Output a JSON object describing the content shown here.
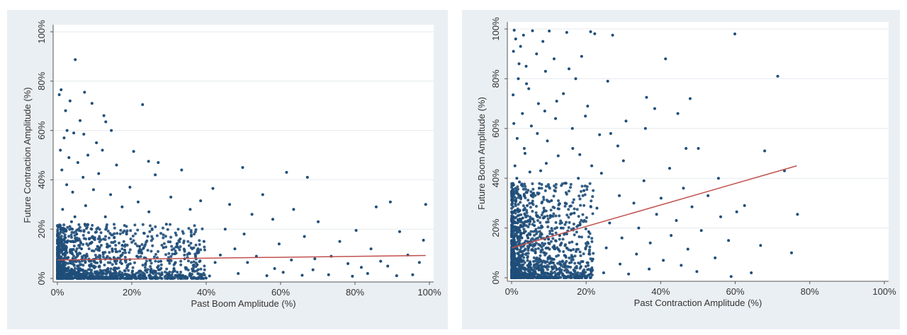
{
  "colors": {
    "panel_bg": "#eaeff3",
    "plot_bg": "#ffffff",
    "grid": "#e6eaee",
    "point": "#1f4e79",
    "fit_line": "#c0504d"
  },
  "chart_data": [
    {
      "type": "scatter",
      "title": "",
      "xlabel": "Past Boom Amplitude (%)",
      "ylabel": "Future Contraction Amplitude (%)",
      "xlim": [
        0,
        100
      ],
      "ylim": [
        0,
        100
      ],
      "x_ticks": [
        "0%",
        "20%",
        "40%",
        "60%",
        "80%",
        "100%"
      ],
      "y_ticks": [
        "0%",
        "20%",
        "40%",
        "60%",
        "80%",
        "100%"
      ],
      "grid": "horizontal",
      "fit_line": {
        "x": [
          0,
          99
        ],
        "y": [
          7.5,
          9.3
        ]
      },
      "points": [
        [
          4.8,
          88.7
        ],
        [
          1,
          76.5
        ],
        [
          7.3,
          75.5
        ],
        [
          0.5,
          74.5
        ],
        [
          22.9,
          70.5
        ],
        [
          9.3,
          71
        ],
        [
          2.2,
          68
        ],
        [
          12.5,
          66
        ],
        [
          3.4,
          72
        ],
        [
          13,
          63.5
        ],
        [
          6.1,
          64
        ],
        [
          2.6,
          60
        ],
        [
          14.5,
          60
        ],
        [
          1.8,
          57
        ],
        [
          4.4,
          59
        ],
        [
          7.1,
          58.5
        ],
        [
          10.5,
          55
        ],
        [
          12.1,
          52
        ],
        [
          0.8,
          52
        ],
        [
          20.5,
          51.5
        ],
        [
          3.1,
          49
        ],
        [
          5.5,
          47
        ],
        [
          8.2,
          50
        ],
        [
          15.9,
          46
        ],
        [
          24.5,
          47.5
        ],
        [
          27.1,
          47
        ],
        [
          49.8,
          45
        ],
        [
          1.2,
          44
        ],
        [
          11.1,
          42.5
        ],
        [
          6.9,
          41
        ],
        [
          33.4,
          44
        ],
        [
          61.6,
          43
        ],
        [
          67.2,
          41
        ],
        [
          26.3,
          42
        ],
        [
          2.5,
          38
        ],
        [
          19.5,
          37
        ],
        [
          9.7,
          36
        ],
        [
          14.3,
          34
        ],
        [
          41.8,
          36.5
        ],
        [
          4.1,
          35
        ],
        [
          30.5,
          33
        ],
        [
          55.2,
          34
        ],
        [
          38.5,
          31.5
        ],
        [
          21.7,
          31
        ],
        [
          46.3,
          30
        ],
        [
          89.5,
          31
        ],
        [
          85.7,
          29
        ],
        [
          99,
          30
        ],
        [
          17.4,
          29
        ],
        [
          7.6,
          29.5
        ],
        [
          63.5,
          28
        ],
        [
          35.7,
          28
        ],
        [
          52.3,
          26
        ],
        [
          24.6,
          27
        ],
        [
          12.9,
          25
        ],
        [
          57.9,
          24
        ],
        [
          70.1,
          23
        ],
        [
          29.3,
          22
        ],
        [
          3.8,
          23
        ],
        [
          45.1,
          20
        ],
        [
          80.3,
          19.5
        ],
        [
          92,
          19
        ],
        [
          50.2,
          18
        ],
        [
          18.6,
          18
        ],
        [
          66.4,
          17
        ],
        [
          9.2,
          20
        ],
        [
          33,
          16
        ],
        [
          39.4,
          15
        ],
        [
          75.9,
          15
        ],
        [
          98.4,
          15.5
        ],
        [
          59.6,
          14
        ],
        [
          22.1,
          13
        ],
        [
          47.7,
          12
        ],
        [
          6.5,
          12
        ],
        [
          84.3,
          12
        ],
        [
          14.8,
          11
        ],
        [
          31.6,
          10
        ],
        [
          94.2,
          9.5
        ],
        [
          53.5,
          9
        ],
        [
          69.2,
          8
        ],
        [
          27.8,
          7
        ],
        [
          42.4,
          6.5
        ],
        [
          78.1,
          6
        ],
        [
          88.8,
          5
        ],
        [
          4,
          10
        ],
        [
          11.5,
          8
        ],
        [
          17.3,
          6
        ],
        [
          1.6,
          7
        ],
        [
          2.3,
          4
        ],
        [
          5.7,
          3
        ],
        [
          8.9,
          5
        ],
        [
          13.6,
          4
        ],
        [
          20.2,
          3
        ],
        [
          25.5,
          2.5
        ],
        [
          36.4,
          3
        ],
        [
          48.6,
          2
        ],
        [
          60.7,
          2.5
        ],
        [
          72.9,
          1.5
        ],
        [
          83.4,
          2
        ],
        [
          95.5,
          1.5
        ],
        [
          3.2,
          1
        ],
        [
          7.8,
          1.5
        ],
        [
          10.3,
          2
        ],
        [
          16.1,
          1
        ],
        [
          19.4,
          1.2
        ],
        [
          30.1,
          1.4
        ],
        [
          40.9,
          1
        ],
        [
          56.3,
          1.1
        ],
        [
          65.8,
          1.3
        ],
        [
          79.3,
          0.9
        ],
        [
          91.2,
          1.1
        ],
        [
          2.7,
          0.8
        ],
        [
          1.1,
          2.2
        ],
        [
          0.6,
          5.5
        ],
        [
          2.9,
          8.5
        ],
        [
          1.9,
          12
        ],
        [
          0.7,
          16
        ],
        [
          3.5,
          15
        ],
        [
          5.2,
          18
        ],
        [
          6.3,
          14.5
        ],
        [
          0.9,
          20
        ],
        [
          4.7,
          25
        ],
        [
          1.4,
          28
        ],
        [
          7.4,
          22
        ],
        [
          8.6,
          16
        ],
        [
          10.8,
          13
        ],
        [
          12.3,
          10.5
        ],
        [
          15.2,
          8.5
        ],
        [
          18.1,
          11.5
        ],
        [
          21.4,
          9
        ],
        [
          23.7,
          6
        ],
        [
          26.9,
          4.5
        ],
        [
          28.5,
          12.5
        ],
        [
          34.2,
          8
        ],
        [
          37.6,
          5.5
        ],
        [
          43.8,
          9.5
        ],
        [
          51.1,
          6.5
        ],
        [
          58.4,
          4
        ],
        [
          62.9,
          7.5
        ],
        [
          68.7,
          3.5
        ],
        [
          73.6,
          9
        ],
        [
          81.7,
          4.5
        ],
        [
          86.9,
          7
        ],
        [
          97.3,
          6.5
        ]
      ]
    },
    {
      "type": "scatter",
      "title": "",
      "xlabel": "Past Contraction Amplitude (%)",
      "ylabel": "Future Boom Amplitude (%)",
      "xlim": [
        0,
        100
      ],
      "ylim": [
        0,
        100
      ],
      "x_ticks": [
        "0%",
        "20%",
        "40%",
        "60%",
        "80%",
        "100%"
      ],
      "y_ticks": [
        "0%",
        "20%",
        "40%",
        "60%",
        "80%",
        "100%"
      ],
      "grid": "horizontal",
      "fit_line": {
        "x": [
          0,
          76.5
        ],
        "y": [
          12,
          45
        ]
      },
      "points": [
        [
          0.7,
          99.5
        ],
        [
          5.6,
          99.3
        ],
        [
          10.1,
          99.2
        ],
        [
          14.8,
          98.6
        ],
        [
          21.2,
          98.9
        ],
        [
          22.3,
          98.1
        ],
        [
          59.9,
          98
        ],
        [
          3.2,
          97.5
        ],
        [
          1.1,
          96
        ],
        [
          8.4,
          95
        ],
        [
          27.1,
          97.5
        ],
        [
          2.4,
          93
        ],
        [
          0.5,
          91
        ],
        [
          6.7,
          90
        ],
        [
          41.3,
          88
        ],
        [
          11.4,
          88
        ],
        [
          18.8,
          89
        ],
        [
          3.9,
          85
        ],
        [
          15.4,
          84
        ],
        [
          9.1,
          83
        ],
        [
          1.8,
          80
        ],
        [
          25.8,
          79
        ],
        [
          71.4,
          81
        ],
        [
          17.2,
          80
        ],
        [
          4.6,
          76
        ],
        [
          13.9,
          74
        ],
        [
          0.4,
          73.5
        ],
        [
          36.2,
          72.5
        ],
        [
          47.9,
          72
        ],
        [
          7.2,
          70
        ],
        [
          20.4,
          69
        ],
        [
          38.4,
          68
        ],
        [
          44.6,
          66
        ],
        [
          2.9,
          66
        ],
        [
          11.8,
          64
        ],
        [
          30.7,
          63
        ],
        [
          5.3,
          61
        ],
        [
          16.3,
          60
        ],
        [
          35.9,
          60
        ],
        [
          23.6,
          57.5
        ],
        [
          1.5,
          56
        ],
        [
          9.6,
          55
        ],
        [
          28.5,
          53
        ],
        [
          46.8,
          52
        ],
        [
          50.1,
          52
        ],
        [
          67.9,
          51
        ],
        [
          3.6,
          50
        ],
        [
          12.5,
          49
        ],
        [
          18.3,
          49.5
        ],
        [
          30,
          47
        ],
        [
          42.4,
          44
        ],
        [
          0.9,
          45
        ],
        [
          7.8,
          43
        ],
        [
          24.1,
          42
        ],
        [
          73.2,
          43
        ],
        [
          55.5,
          40
        ],
        [
          35.5,
          39
        ],
        [
          14.6,
          38
        ],
        [
          2.1,
          38.5
        ],
        [
          46.1,
          36
        ],
        [
          19.4,
          35
        ],
        [
          5.9,
          34
        ],
        [
          28.9,
          33
        ],
        [
          40.1,
          32
        ],
        [
          52.7,
          33
        ],
        [
          10.7,
          31
        ],
        [
          32.8,
          30
        ],
        [
          62.5,
          29
        ],
        [
          48.4,
          28.5
        ],
        [
          4.2,
          29
        ],
        [
          22.9,
          28
        ],
        [
          76.7,
          25.5
        ],
        [
          16.8,
          26
        ],
        [
          38.9,
          25.5
        ],
        [
          56.1,
          24.5
        ],
        [
          8.5,
          24
        ],
        [
          44.2,
          23
        ],
        [
          26.3,
          22
        ],
        [
          1.6,
          22
        ],
        [
          60.4,
          26.5
        ],
        [
          34.1,
          20
        ],
        [
          13.3,
          20
        ],
        [
          50.9,
          19
        ],
        [
          20.7,
          18.5
        ],
        [
          3.3,
          18
        ],
        [
          42.8,
          17
        ],
        [
          29.6,
          16
        ],
        [
          58.2,
          15
        ],
        [
          9.9,
          15.5
        ],
        [
          37.2,
          14
        ],
        [
          17.5,
          13.5
        ],
        [
          66.8,
          13
        ],
        [
          25.4,
          12
        ],
        [
          47.3,
          11.5
        ],
        [
          0.8,
          12
        ],
        [
          75.1,
          10
        ],
        [
          6.4,
          10
        ],
        [
          33.5,
          9.5
        ],
        [
          14.2,
          9
        ],
        [
          54.6,
          8
        ],
        [
          21.8,
          7.5
        ],
        [
          40.7,
          7
        ],
        [
          64.3,
          2
        ],
        [
          2.6,
          7
        ],
        [
          11.2,
          6
        ],
        [
          29.1,
          5.5
        ],
        [
          45.5,
          5
        ],
        [
          58.9,
          0.5
        ],
        [
          18.6,
          4.5
        ],
        [
          36.9,
          3.5
        ],
        [
          49.7,
          2.5
        ],
        [
          5.1,
          4
        ],
        [
          8.1,
          2.5
        ],
        [
          24.7,
          2
        ],
        [
          31.4,
          1.5
        ],
        [
          13.7,
          1
        ],
        [
          1.3,
          1.5
        ],
        [
          3.7,
          0.8
        ],
        [
          0.6,
          3
        ],
        [
          1.9,
          5
        ],
        [
          2.8,
          9
        ],
        [
          0.4,
          14
        ],
        [
          4.4,
          16
        ],
        [
          1.2,
          19
        ],
        [
          6.1,
          21
        ],
        [
          3,
          24
        ],
        [
          0.9,
          27
        ],
        [
          5.5,
          30
        ],
        [
          2.3,
          33
        ],
        [
          7.4,
          36
        ],
        [
          1.4,
          40
        ],
        [
          4.9,
          42.5
        ],
        [
          9.3,
          46
        ],
        [
          3.4,
          52
        ],
        [
          6.9,
          58
        ],
        [
          0.6,
          62
        ],
        [
          8.9,
          67
        ],
        [
          12.1,
          71
        ],
        [
          4,
          78
        ],
        [
          2,
          86
        ],
        [
          10.4,
          25
        ],
        [
          12.9,
          17
        ],
        [
          15.9,
          11
        ],
        [
          19.1,
          6.5
        ],
        [
          7.7,
          13
        ],
        [
          11,
          3.5
        ],
        [
          14.4,
          30
        ],
        [
          17.9,
          40
        ],
        [
          21.5,
          45
        ],
        [
          16.4,
          52
        ],
        [
          26.6,
          58
        ],
        [
          19.8,
          65
        ]
      ]
    }
  ]
}
